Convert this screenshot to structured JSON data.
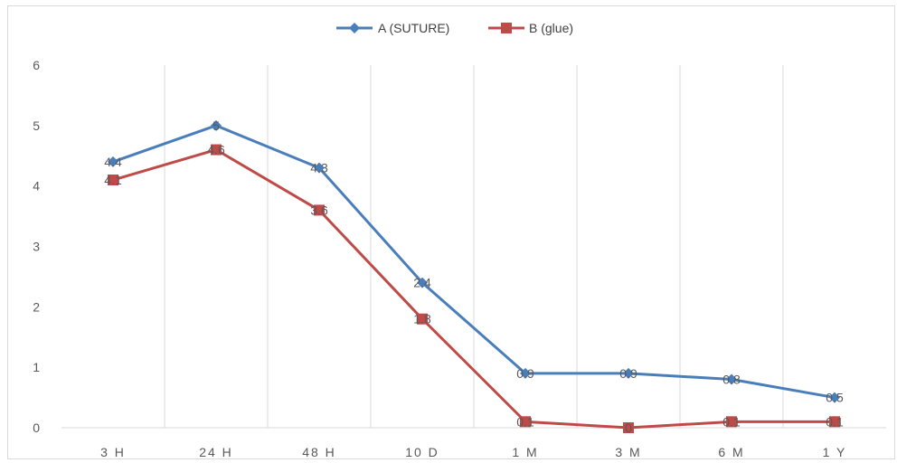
{
  "chart_data": {
    "type": "line",
    "categories": [
      "3 H",
      "24 H",
      "48 H",
      "10 D",
      "1 M",
      "3 M",
      "6 M",
      "1 Y"
    ],
    "series": [
      {
        "name": "A (SUTURE)",
        "values": [
          4.4,
          5,
          4.3,
          2.4,
          0.9,
          0.9,
          0.8,
          0.5
        ],
        "labels": [
          "4.4",
          "5",
          "4.3",
          "2.4",
          "0.9",
          "0.9",
          "0.8",
          "0.5"
        ],
        "color": "#4a7ebb",
        "marker": "diamond"
      },
      {
        "name": "B (glue)",
        "values": [
          4.1,
          4.6,
          3.6,
          1.8,
          0.1,
          0,
          0.1,
          0.1
        ],
        "labels": [
          "4.1",
          "4.6",
          "3.6",
          "1.8",
          "0.1",
          "0",
          "0.1",
          "0.1"
        ],
        "color": "#be4b48",
        "marker": "square"
      }
    ],
    "ylim": [
      0,
      6
    ],
    "yticks": [
      "0",
      "1",
      "2",
      "3",
      "4",
      "5",
      "6"
    ],
    "grid": "vertical",
    "legend": "top-center",
    "title": "",
    "xlabel": "",
    "ylabel": ""
  }
}
